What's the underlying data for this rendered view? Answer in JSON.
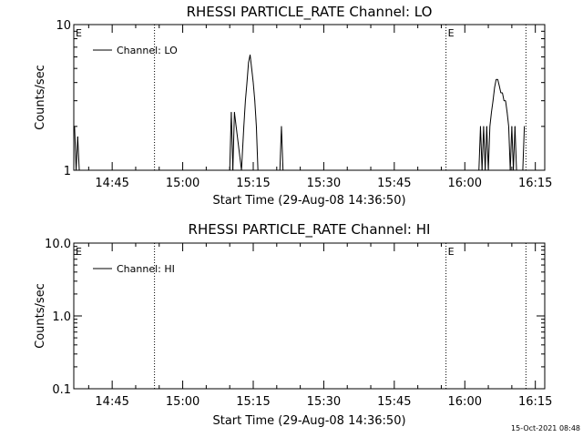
{
  "footer_timestamp": "15-Oct-2021 08:48",
  "colors": {
    "background": "#ffffff",
    "foreground": "#000000"
  },
  "chart_data": [
    {
      "type": "line",
      "title": "RHESSI PARTICLE_RATE Channel: LO",
      "xlabel": "Start Time (29-Aug-08 14:36:50)",
      "ylabel": "Counts/sec",
      "y_scale": "log",
      "ylim": [
        1,
        10
      ],
      "y_ticks": [
        {
          "value": 1,
          "label": "1"
        },
        {
          "value": 10,
          "label": "10"
        }
      ],
      "xlim": [
        "14:36:50",
        "16:17:00"
      ],
      "x_ticks": [
        "14:45",
        "15:00",
        "15:15",
        "15:30",
        "15:45",
        "16:00",
        "16:15"
      ],
      "grid": false,
      "legend": {
        "position": "top-left",
        "entries": [
          "Channel: LO"
        ]
      },
      "event_markers": [
        {
          "time": "14:54:00",
          "label": ""
        },
        {
          "time": "15:56:00",
          "label": "E"
        },
        {
          "time": "16:13:00",
          "label": ""
        }
      ],
      "start_marker_label": "E",
      "series": [
        {
          "name": "Channel: LO",
          "points": [
            [
              "14:37:00",
              2.0
            ],
            [
              "14:37:20",
              1.0
            ],
            [
              "14:37:40",
              1.7
            ],
            [
              "14:38:00",
              1.0
            ],
            [
              "15:10:00",
              1.0
            ],
            [
              "15:10:20",
              2.5
            ],
            [
              "15:10:40",
              1.0
            ],
            [
              "15:11:00",
              2.5
            ],
            [
              "15:12:30",
              1.0
            ],
            [
              "15:13:00",
              2.0
            ],
            [
              "15:13:20",
              3.0
            ],
            [
              "15:13:40",
              4.0
            ],
            [
              "15:14:00",
              5.5
            ],
            [
              "15:14:20",
              6.2
            ],
            [
              "15:14:40",
              5.0
            ],
            [
              "15:15:00",
              4.0
            ],
            [
              "15:15:20",
              3.0
            ],
            [
              "15:15:40",
              2.0
            ],
            [
              "15:16:00",
              1.0
            ],
            [
              "15:20:40",
              1.0
            ],
            [
              "15:21:00",
              2.0
            ],
            [
              "15:21:20",
              1.0
            ],
            [
              "16:03:00",
              1.0
            ],
            [
              "16:03:20",
              2.0
            ],
            [
              "16:03:40",
              1.0
            ],
            [
              "16:04:00",
              2.0
            ],
            [
              "16:04:20",
              1.0
            ],
            [
              "16:04:40",
              2.0
            ],
            [
              "16:05:00",
              1.0
            ],
            [
              "16:05:20",
              2.0
            ],
            [
              "16:05:40",
              2.5
            ],
            [
              "16:06:00",
              3.0
            ],
            [
              "16:06:20",
              3.7
            ],
            [
              "16:06:40",
              4.2
            ],
            [
              "16:07:00",
              4.2
            ],
            [
              "16:07:20",
              3.8
            ],
            [
              "16:07:40",
              3.4
            ],
            [
              "16:08:00",
              3.4
            ],
            [
              "16:08:20",
              3.0
            ],
            [
              "16:08:40",
              3.0
            ],
            [
              "16:09:00",
              2.5
            ],
            [
              "16:09:20",
              2.0
            ],
            [
              "16:09:40",
              1.0
            ],
            [
              "16:10:00",
              2.0
            ],
            [
              "16:10:20",
              1.0
            ],
            [
              "16:10:40",
              2.0
            ],
            [
              "16:11:00",
              1.0
            ],
            [
              "16:12:20",
              1.0
            ],
            [
              "16:12:40",
              2.0
            ]
          ]
        }
      ]
    },
    {
      "type": "line",
      "title": "RHESSI PARTICLE_RATE Channel: HI",
      "xlabel": "Start Time (29-Aug-08 14:36:50)",
      "ylabel": "Counts/sec",
      "y_scale": "log",
      "ylim": [
        0.1,
        10
      ],
      "y_ticks": [
        {
          "value": 0.1,
          "label": "0.1"
        },
        {
          "value": 1,
          "label": "1.0"
        },
        {
          "value": 10,
          "label": "10.0"
        }
      ],
      "xlim": [
        "14:36:50",
        "16:17:00"
      ],
      "x_ticks": [
        "14:45",
        "15:00",
        "15:15",
        "15:30",
        "15:45",
        "16:00",
        "16:15"
      ],
      "grid": false,
      "legend": {
        "position": "top-left",
        "entries": [
          "Channel: HI"
        ]
      },
      "event_markers": [
        {
          "time": "14:54:00",
          "label": ""
        },
        {
          "time": "15:56:00",
          "label": "E"
        },
        {
          "time": "16:13:00",
          "label": ""
        }
      ],
      "start_marker_label": "E",
      "series": [
        {
          "name": "Channel: HI",
          "points": []
        }
      ]
    }
  ]
}
